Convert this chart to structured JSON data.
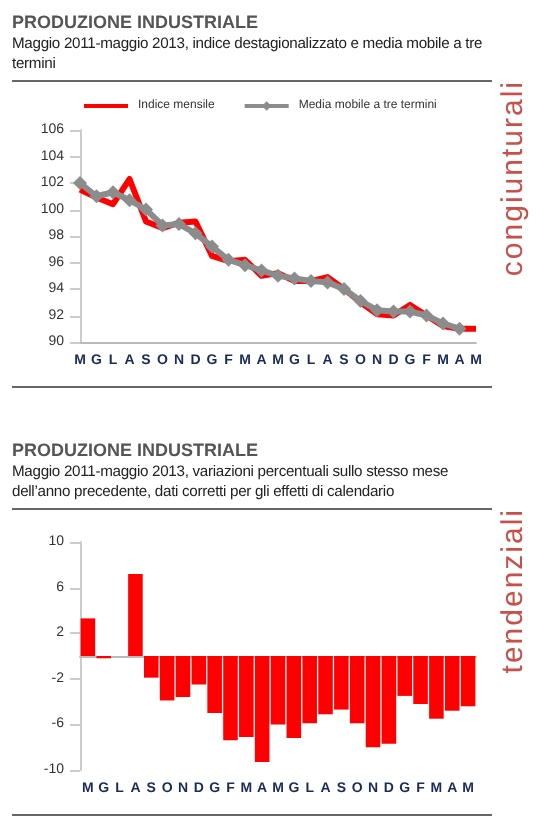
{
  "chart_data": [
    {
      "type": "line",
      "title": "PRODUZIONE INDUSTRIALE",
      "subtitle": "Maggio 2011-maggio 2013, indice destagionalizzato e media mobile a tre termini",
      "annotations": [
        "congiunturali"
      ],
      "categories": [
        "M",
        "G",
        "L",
        "A",
        "S",
        "O",
        "N",
        "D",
        "G",
        "F",
        "M",
        "A",
        "M",
        "G",
        "L",
        "A",
        "S",
        "O",
        "N",
        "D",
        "G",
        "F",
        "M",
        "A",
        "M"
      ],
      "series": [
        {
          "name": "Indice mensile",
          "color": "#ff0000",
          "marker": "none",
          "values": [
            101.5,
            100.9,
            100.4,
            102.3,
            99.1,
            98.6,
            99.0,
            99.1,
            96.5,
            96.1,
            96.2,
            95.0,
            95.2,
            94.6,
            94.6,
            94.9,
            94.0,
            93.0,
            92.1,
            92.0,
            92.8,
            92.0,
            91.2,
            91.0,
            91.0
          ]
        },
        {
          "name": "Media mobile a tre termini",
          "color": "#8c8c8c",
          "marker": "diamond",
          "values": [
            102.0,
            101.0,
            101.3,
            100.7,
            100.0,
            98.8,
            98.9,
            98.2,
            97.2,
            96.2,
            95.8,
            95.4,
            95.0,
            94.8,
            94.6,
            94.5,
            94.0,
            93.1,
            92.4,
            92.3,
            92.3,
            92.0,
            91.4,
            91.0,
            null
          ]
        }
      ],
      "ylim": [
        90,
        106
      ],
      "yticks": [
        90,
        92,
        94,
        96,
        98,
        100,
        102,
        104,
        106
      ],
      "legend": "top"
    },
    {
      "type": "bar",
      "title": "PRODUZIONE INDUSTRIALE",
      "subtitle": "Maggio 2011-maggio 2013, variazioni percentuali sullo stesso mese dell’anno precedente, dati corretti per gli effetti di calendario",
      "annotations": [
        "tendenziali"
      ],
      "categories": [
        "M",
        "G",
        "L",
        "A",
        "S",
        "O",
        "N",
        "D",
        "G",
        "F",
        "M",
        "A",
        "M",
        "G",
        "L",
        "A",
        "S",
        "O",
        "N",
        "D",
        "G",
        "F",
        "M",
        "A",
        "M"
      ],
      "values": [
        3.3,
        -0.2,
        0,
        7.2,
        -1.9,
        -3.9,
        -3.6,
        -2.5,
        -5.0,
        -7.4,
        -7.1,
        -9.3,
        -6.0,
        -7.2,
        -5.9,
        -5.1,
        -4.7,
        -5.9,
        -8.0,
        -7.7,
        -3.5,
        -4.2,
        -5.5,
        -4.8,
        -4.4
      ],
      "color": "#ff0000",
      "ylim": [
        -10,
        10
      ],
      "yticks": [
        -10,
        -6,
        -2,
        2,
        6,
        10
      ]
    }
  ]
}
